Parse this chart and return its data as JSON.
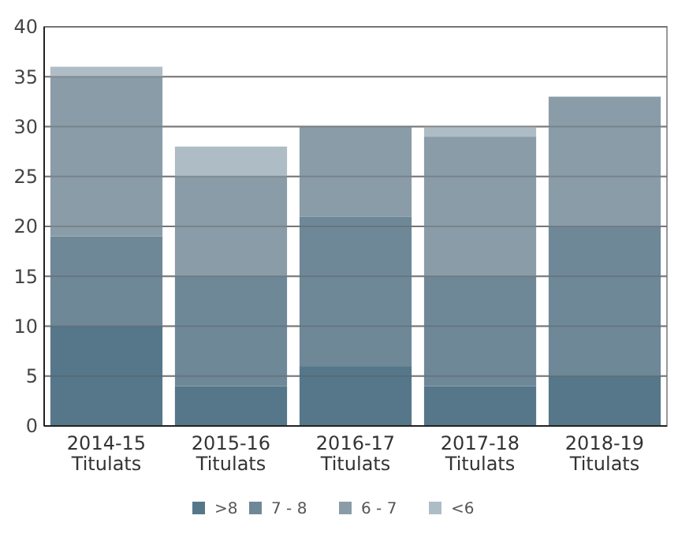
{
  "chart_data": {
    "type": "bar",
    "stacked": true,
    "categories": [
      "2014-15 Titulats",
      "2015-16 Titulats",
      "2016-17 Titulats",
      "2017-18 Titulats",
      "2018-19 Titulats"
    ],
    "series": [
      {
        "name": ">8",
        "color": "#56778a",
        "values": [
          10,
          4,
          6,
          4,
          5
        ]
      },
      {
        "name": "7 - 8",
        "color": "#6f8898",
        "values": [
          9,
          11,
          15,
          11,
          15
        ]
      },
      {
        "name": "6 - 7",
        "color": "#8a9ca8",
        "values": [
          16,
          10,
          9,
          14,
          13
        ]
      },
      {
        "name": "<6",
        "color": "#aebcc5",
        "values": [
          1,
          3,
          0,
          1,
          0
        ]
      }
    ],
    "ylim": [
      0,
      40
    ],
    "yticks": [
      0,
      5,
      10,
      15,
      20,
      25,
      30,
      35,
      40
    ],
    "grid": "y",
    "legend": "bottom"
  }
}
